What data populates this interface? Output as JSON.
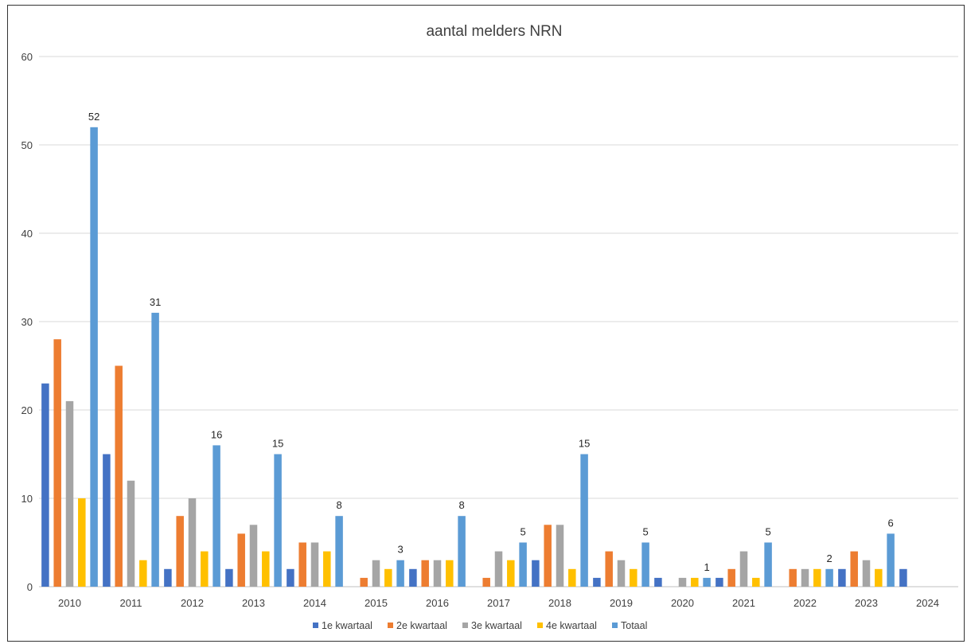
{
  "chart_data": {
    "type": "bar",
    "title": "aantal melders NRN",
    "xlabel": "",
    "ylabel": "",
    "ylim": [
      0,
      60
    ],
    "yticks": [
      0,
      10,
      20,
      30,
      40,
      50,
      60
    ],
    "grid": true,
    "legend_position": "bottom",
    "categories": [
      "2010",
      "2011",
      "2012",
      "2013",
      "2014",
      "2015",
      "2016",
      "2017",
      "2018",
      "2019",
      "2020",
      "2021",
      "2022",
      "2023",
      "2024"
    ],
    "series": [
      {
        "name": "1e kwartaal",
        "color": "#4472C4",
        "values": [
          23,
          15,
          2,
          2,
          2,
          null,
          2,
          null,
          3,
          1,
          1,
          1,
          null,
          2,
          2
        ]
      },
      {
        "name": "2e kwartaal",
        "color": "#ED7D31",
        "values": [
          28,
          25,
          8,
          6,
          5,
          1,
          3,
          1,
          7,
          4,
          null,
          2,
          2,
          4,
          null
        ]
      },
      {
        "name": "3e kwartaal",
        "color": "#A5A5A5",
        "values": [
          21,
          12,
          10,
          7,
          5,
          3,
          3,
          4,
          7,
          3,
          1,
          4,
          2,
          3,
          null
        ]
      },
      {
        "name": "4e kwartaal",
        "color": "#FFC000",
        "values": [
          10,
          3,
          4,
          4,
          4,
          2,
          3,
          3,
          2,
          2,
          1,
          1,
          2,
          2,
          null
        ]
      },
      {
        "name": "Totaal",
        "color": "#5B9BD5",
        "values": [
          52,
          31,
          16,
          15,
          8,
          3,
          8,
          5,
          15,
          5,
          1,
          5,
          2,
          6,
          null
        ],
        "data_labels": true
      }
    ]
  }
}
